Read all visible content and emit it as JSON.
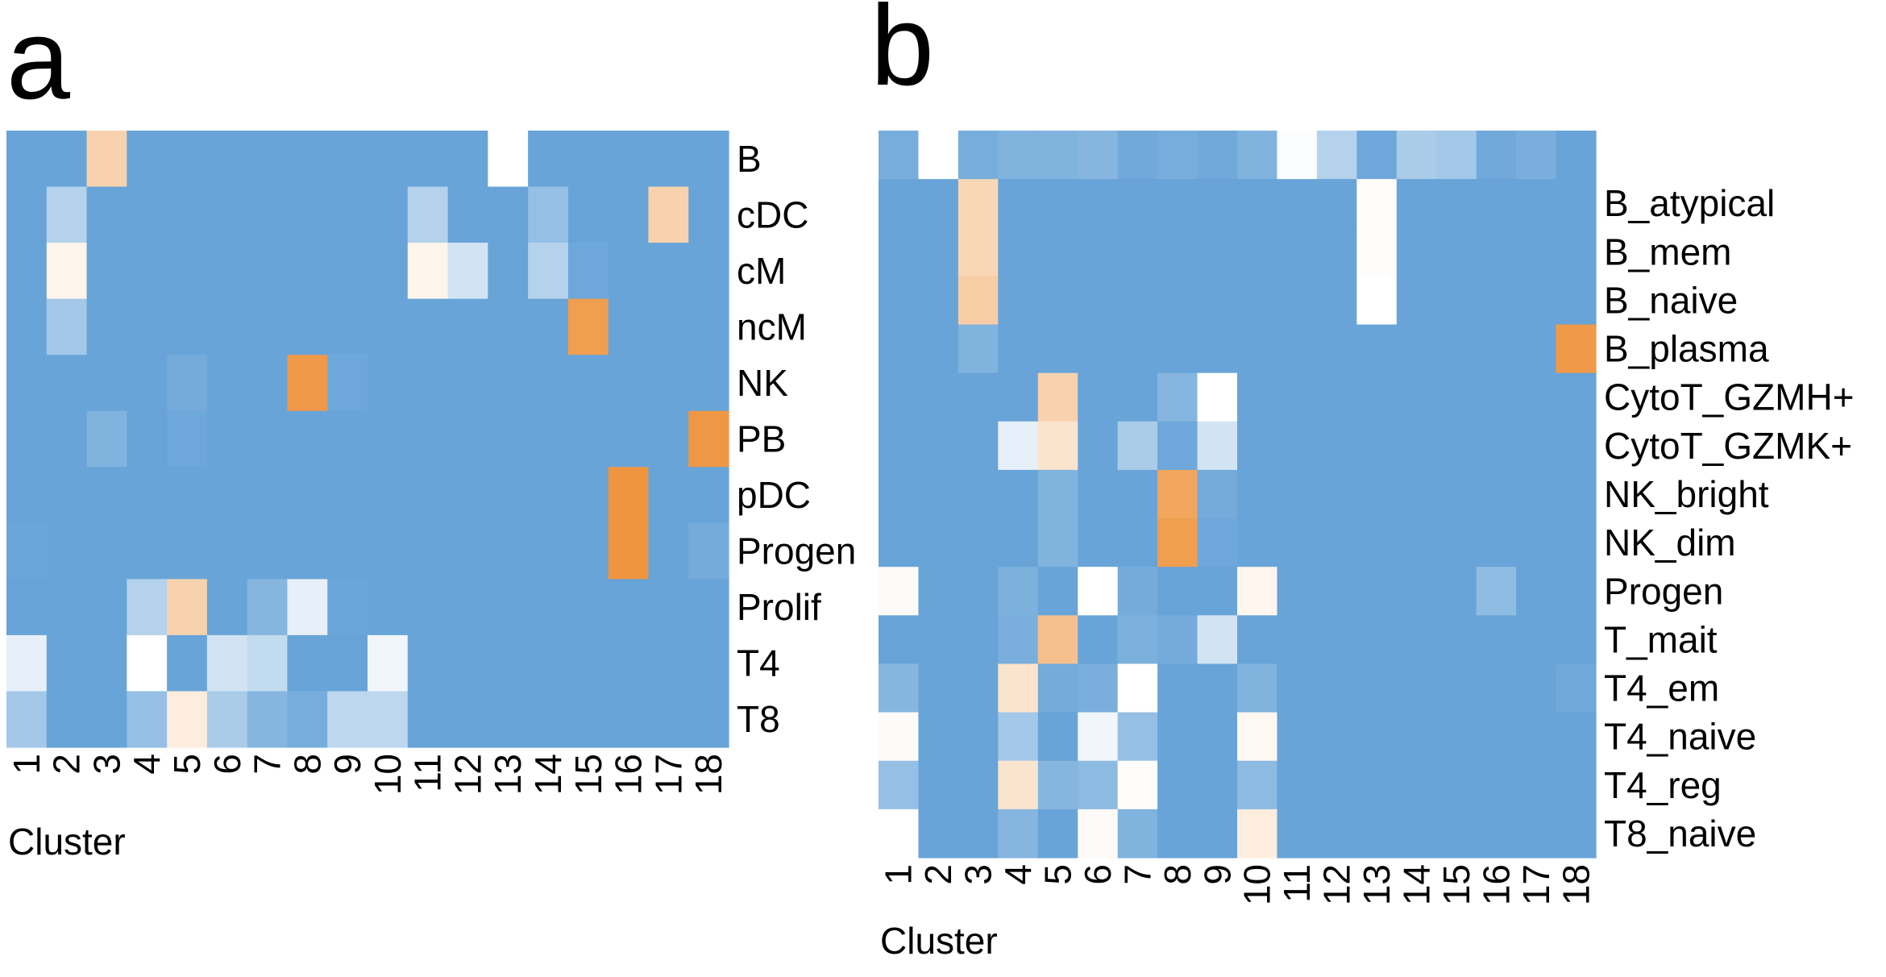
{
  "chart_data": [
    {
      "type": "heatmap",
      "panel": "a",
      "xlabel": "Cluster",
      "columns": [
        "1",
        "2",
        "3",
        "4",
        "5",
        "6",
        "7",
        "8",
        "9",
        "10",
        "11",
        "12",
        "13",
        "14",
        "15",
        "16",
        "17",
        "18"
      ],
      "rows": [
        "B",
        "cDC",
        "cM",
        "ncM",
        "NK",
        "PB",
        "pDC",
        "Progen",
        "Prolif",
        "T4",
        "T8"
      ],
      "values": [
        [
          0.0,
          0.0,
          0.7,
          0.0,
          0.0,
          0.0,
          0.0,
          0.0,
          0.0,
          0.0,
          0.0,
          0.0,
          0.5,
          0.0,
          0.0,
          0.0,
          0.0,
          0.0
        ],
        [
          0.0,
          0.25,
          0.0,
          0.0,
          0.0,
          0.0,
          0.0,
          0.0,
          0.0,
          0.0,
          0.25,
          0.0,
          0.0,
          0.15,
          0.0,
          0.0,
          0.7,
          0.0
        ],
        [
          0.0,
          0.55,
          0.0,
          0.0,
          0.0,
          0.0,
          0.0,
          0.0,
          0.0,
          0.0,
          0.55,
          0.35,
          0.0,
          0.25,
          0.02,
          0.0,
          0.0,
          0.0
        ],
        [
          0.0,
          0.2,
          0.0,
          0.0,
          0.0,
          0.0,
          0.0,
          0.0,
          0.0,
          0.0,
          0.0,
          0.0,
          0.0,
          0.0,
          0.93,
          0.0,
          0.0,
          0.0
        ],
        [
          0.0,
          0.0,
          0.0,
          0.0,
          0.04,
          0.0,
          0.0,
          0.95,
          0.02,
          0.0,
          0.0,
          0.0,
          0.0,
          0.0,
          0.0,
          0.0,
          0.0,
          0.0
        ],
        [
          0.0,
          0.0,
          0.08,
          0.0,
          0.02,
          0.0,
          0.0,
          0.0,
          0.0,
          0.0,
          0.0,
          0.0,
          0.0,
          0.0,
          0.0,
          0.0,
          0.0,
          0.96
        ],
        [
          0.0,
          0.0,
          0.0,
          0.0,
          0.0,
          0.0,
          0.0,
          0.0,
          0.0,
          0.0,
          0.0,
          0.0,
          0.0,
          0.0,
          0.0,
          0.97,
          0.0,
          0.0
        ],
        [
          0.01,
          0.0,
          0.0,
          0.0,
          0.0,
          0.0,
          0.0,
          0.0,
          0.0,
          0.0,
          0.0,
          0.0,
          0.0,
          0.0,
          0.0,
          0.97,
          0.0,
          0.04
        ],
        [
          0.0,
          0.0,
          0.0,
          0.25,
          0.7,
          0.0,
          0.1,
          0.42,
          0.01,
          0.0,
          0.0,
          0.0,
          0.0,
          0.0,
          0.0,
          0.0,
          0.0,
          0.0
        ],
        [
          0.42,
          0.0,
          0.0,
          0.5,
          0.0,
          0.35,
          0.3,
          0.0,
          0.0,
          0.45,
          0.0,
          0.0,
          0.0,
          0.0,
          0.0,
          0.0,
          0.0,
          0.0
        ],
        [
          0.2,
          0.0,
          0.0,
          0.15,
          0.58,
          0.22,
          0.1,
          0.05,
          0.28,
          0.28,
          0.0,
          0.0,
          0.0,
          0.0,
          0.0,
          0.0,
          0.0,
          0.0
        ]
      ]
    },
    {
      "type": "heatmap",
      "panel": "b",
      "xlabel": "Cluster",
      "columns": [
        "1",
        "2",
        "3",
        "4",
        "5",
        "6",
        "7",
        "8",
        "9",
        "10",
        "11",
        "12",
        "13",
        "14",
        "15",
        "16",
        "17",
        "18"
      ],
      "rows": [
        "",
        "B_atypical",
        "B_mem",
        "B_naive",
        "B_plasma",
        "CytoT_GZMH+",
        "CytoT_GZMK+",
        "NK_bright",
        "NK_dim",
        "Progen",
        "T_mait",
        "T4_em",
        "T4_naive",
        "T4_reg",
        "T8_naive"
      ],
      "values": [
        [
          0.05,
          0.5,
          0.05,
          0.08,
          0.08,
          0.1,
          0.03,
          0.05,
          0.03,
          0.08,
          0.49,
          0.25,
          0.02,
          0.22,
          0.2,
          0.03,
          0.06,
          0.0
        ],
        [
          0.0,
          0.0,
          0.68,
          0.0,
          0.0,
          0.0,
          0.0,
          0.0,
          0.0,
          0.0,
          0.0,
          0.0,
          0.51,
          0.0,
          0.0,
          0.0,
          0.0,
          0.0
        ],
        [
          0.0,
          0.0,
          0.68,
          0.0,
          0.0,
          0.0,
          0.0,
          0.0,
          0.0,
          0.0,
          0.0,
          0.0,
          0.51,
          0.0,
          0.0,
          0.0,
          0.0,
          0.0
        ],
        [
          0.0,
          0.0,
          0.72,
          0.0,
          0.0,
          0.0,
          0.0,
          0.0,
          0.0,
          0.0,
          0.0,
          0.0,
          0.5,
          0.0,
          0.0,
          0.0,
          0.0,
          0.0
        ],
        [
          0.0,
          0.0,
          0.08,
          0.0,
          0.0,
          0.0,
          0.0,
          0.0,
          0.0,
          0.0,
          0.0,
          0.0,
          0.0,
          0.0,
          0.0,
          0.0,
          0.0,
          0.95
        ],
        [
          0.0,
          0.0,
          0.0,
          0.0,
          0.7,
          0.0,
          0.0,
          0.1,
          0.5,
          0.0,
          0.0,
          0.0,
          0.0,
          0.0,
          0.0,
          0.0,
          0.0,
          0.0
        ],
        [
          0.0,
          0.0,
          0.0,
          0.42,
          0.62,
          0.0,
          0.22,
          0.02,
          0.35,
          0.0,
          0.0,
          0.0,
          0.0,
          0.0,
          0.0,
          0.0,
          0.0,
          0.0
        ],
        [
          0.0,
          0.0,
          0.0,
          0.0,
          0.08,
          0.0,
          0.0,
          0.9,
          0.04,
          0.0,
          0.0,
          0.0,
          0.0,
          0.0,
          0.0,
          0.0,
          0.0,
          0.0
        ],
        [
          0.0,
          0.0,
          0.0,
          0.0,
          0.08,
          0.0,
          0.0,
          0.93,
          0.02,
          0.0,
          0.0,
          0.0,
          0.0,
          0.0,
          0.0,
          0.0,
          0.0,
          0.0
        ],
        [
          0.52,
          0.0,
          0.0,
          0.07,
          0.0,
          0.5,
          0.04,
          0.0,
          0.0,
          0.54,
          0.0,
          0.0,
          0.0,
          0.0,
          0.0,
          0.13,
          0.0,
          0.0
        ],
        [
          0.0,
          0.0,
          0.0,
          0.06,
          0.78,
          0.0,
          0.07,
          0.04,
          0.35,
          0.0,
          0.0,
          0.0,
          0.0,
          0.0,
          0.0,
          0.0,
          0.0,
          0.0
        ],
        [
          0.1,
          0.0,
          0.0,
          0.62,
          0.04,
          0.06,
          0.5,
          0.0,
          0.0,
          0.08,
          0.0,
          0.0,
          0.0,
          0.0,
          0.0,
          0.0,
          0.0,
          0.03
        ],
        [
          0.52,
          0.0,
          0.0,
          0.2,
          0.0,
          0.45,
          0.15,
          0.0,
          0.0,
          0.53,
          0.0,
          0.0,
          0.0,
          0.0,
          0.0,
          0.0,
          0.0,
          0.0
        ],
        [
          0.15,
          0.0,
          0.0,
          0.62,
          0.1,
          0.12,
          0.51,
          0.0,
          0.0,
          0.12,
          0.0,
          0.0,
          0.0,
          0.0,
          0.0,
          0.0,
          0.0,
          0.0
        ],
        [
          0.5,
          0.0,
          0.0,
          0.1,
          0.0,
          0.52,
          0.08,
          0.0,
          0.0,
          0.58,
          0.0,
          0.0,
          0.0,
          0.0,
          0.0,
          0.0,
          0.0,
          0.0
        ]
      ]
    }
  ],
  "colors": {
    "low": "#68a4d8",
    "mid": "#ffffff",
    "high": "#ee8e34"
  }
}
